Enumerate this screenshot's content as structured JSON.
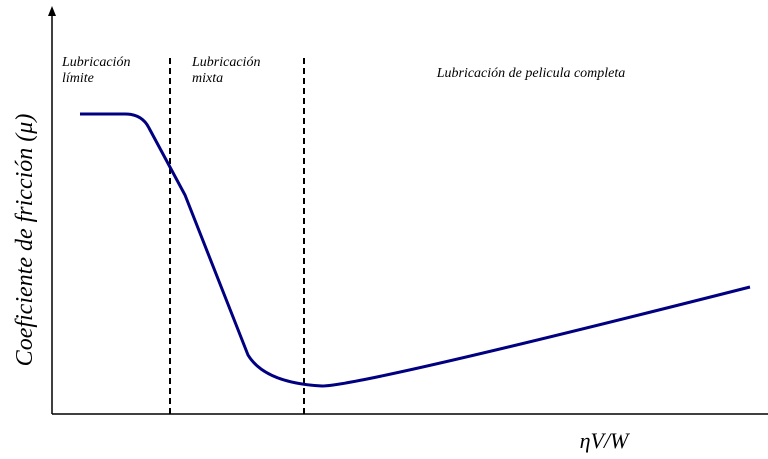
{
  "regions": [
    {
      "label_lines": [
        "Lubricación",
        "límite"
      ]
    },
    {
      "label_lines": [
        "Lubricación",
        "mixta"
      ]
    },
    {
      "label_lines": [
        "Lubricación de pelicula completa"
      ]
    }
  ],
  "axes": {
    "y_label": "Coeficiente de fricción (μ)",
    "x_label": "ηV/W"
  }
}
